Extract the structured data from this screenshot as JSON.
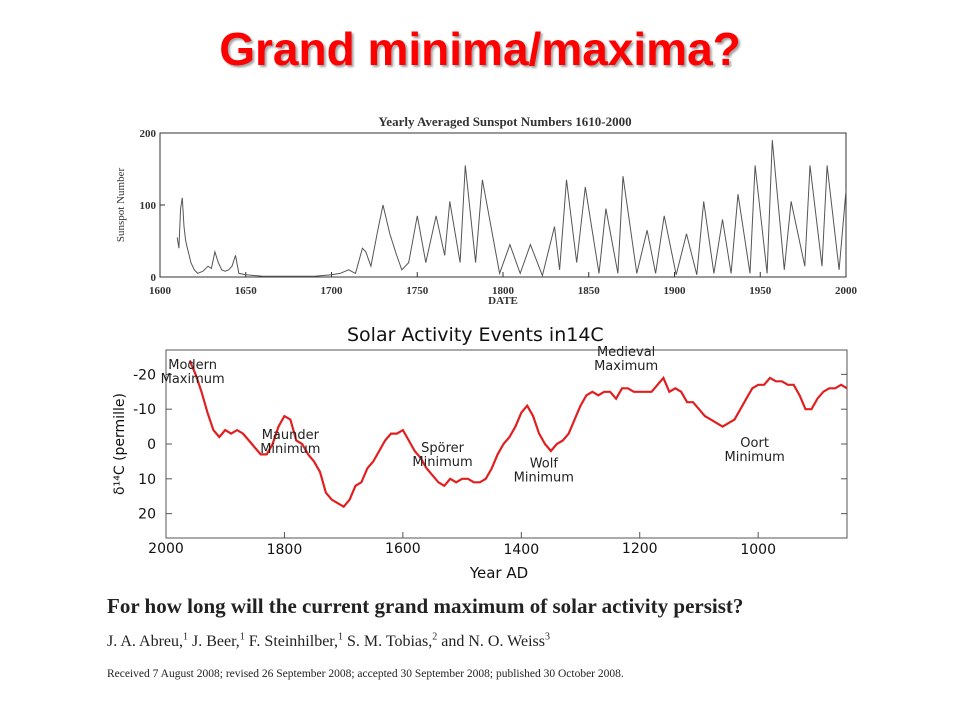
{
  "slide": {
    "title": "Grand minima/maxima?",
    "title_color": "#ff0000"
  },
  "paper": {
    "title": "For how long will the current grand maximum of solar activity persist?",
    "authors": [
      {
        "name": "J. A. Abreu,",
        "aff": "1"
      },
      {
        "name": "J. Beer,",
        "aff": "1"
      },
      {
        "name": "F. Steinhilber,",
        "aff": "1"
      },
      {
        "name": "S. M. Tobias,",
        "aff": "2"
      },
      {
        "name": "and N. O. Weiss",
        "aff": "3"
      }
    ],
    "history": "Received 7 August 2008; revised 26 September 2008; accepted 30 September 2008; published 30 October 2008."
  },
  "chart_data": [
    {
      "type": "line",
      "title": "Yearly Averaged Sunspot Numbers 1610-2000",
      "xlabel": "DATE",
      "ylabel": "Sunspot Number",
      "xlim": [
        1600,
        2000
      ],
      "ylim": [
        0,
        200
      ],
      "xticks": [
        1600,
        1650,
        1700,
        1750,
        1800,
        1850,
        1900,
        1950,
        2000
      ],
      "yticks": [
        0,
        100,
        200
      ],
      "grid": false,
      "line_color": "#555555",
      "series": [
        {
          "x": [
            1610,
            1611,
            1612,
            1613,
            1614,
            1615,
            1616,
            1617,
            1618,
            1620,
            1622,
            1625,
            1628,
            1630,
            1632,
            1634,
            1636,
            1638,
            1640,
            1642,
            1644,
            1646,
            1650,
            1660,
            1670,
            1680,
            1690,
            1700,
            1705,
            1710,
            1714,
            1718,
            1720,
            1723,
            1727,
            1730,
            1734,
            1738,
            1741,
            1745,
            1750,
            1755,
            1761,
            1766,
            1769,
            1775,
            1778,
            1784,
            1788,
            1798,
            1804,
            1810,
            1816,
            1823,
            1830,
            1833,
            1837,
            1843,
            1848,
            1856,
            1860,
            1867,
            1870,
            1878,
            1884,
            1889,
            1894,
            1901,
            1907,
            1913,
            1917,
            1923,
            1928,
            1933,
            1937,
            1944,
            1947,
            1954,
            1957,
            1964,
            1968,
            1976,
            1979,
            1986,
            1989,
            1996,
            2000
          ],
          "y": [
            55,
            40,
            95,
            110,
            70,
            50,
            40,
            30,
            20,
            10,
            5,
            8,
            15,
            12,
            35,
            20,
            10,
            8,
            10,
            15,
            30,
            5,
            3,
            1,
            1,
            1,
            1,
            3,
            5,
            10,
            5,
            40,
            35,
            15,
            65,
            100,
            60,
            30,
            10,
            20,
            85,
            20,
            85,
            30,
            105,
            20,
            155,
            20,
            135,
            5,
            45,
            5,
            45,
            2,
            70,
            10,
            135,
            20,
            125,
            5,
            95,
            5,
            140,
            5,
            65,
            5,
            85,
            3,
            60,
            3,
            105,
            5,
            80,
            5,
            115,
            5,
            155,
            5,
            190,
            10,
            105,
            15,
            155,
            15,
            155,
            10,
            120
          ]
        }
      ]
    },
    {
      "type": "line",
      "title": "Solar Activity Events in",
      "title_isotope": "14C",
      "xlabel": "Year AD",
      "ylabel": "δ¹⁴C (permille)",
      "xlim": [
        2000,
        850
      ],
      "ylim": [
        -27,
        27
      ],
      "y_inverted": true,
      "xticks": [
        2000,
        1800,
        1600,
        1400,
        1200,
        1000
      ],
      "yticks": [
        -20,
        -10,
        0,
        10,
        20
      ],
      "grid": false,
      "line_color": "#e02020",
      "series": [
        {
          "x": [
            1960,
            1950,
            1940,
            1930,
            1920,
            1910,
            1900,
            1890,
            1880,
            1870,
            1860,
            1850,
            1840,
            1830,
            1820,
            1810,
            1800,
            1790,
            1780,
            1770,
            1760,
            1750,
            1740,
            1730,
            1720,
            1710,
            1700,
            1690,
            1680,
            1670,
            1660,
            1650,
            1640,
            1630,
            1620,
            1610,
            1600,
            1590,
            1580,
            1570,
            1560,
            1550,
            1540,
            1530,
            1520,
            1510,
            1500,
            1490,
            1480,
            1470,
            1460,
            1450,
            1440,
            1430,
            1420,
            1410,
            1400,
            1390,
            1380,
            1370,
            1360,
            1350,
            1340,
            1330,
            1320,
            1310,
            1300,
            1290,
            1280,
            1270,
            1260,
            1250,
            1240,
            1230,
            1220,
            1210,
            1200,
            1190,
            1180,
            1170,
            1160,
            1150,
            1140,
            1130,
            1120,
            1110,
            1100,
            1090,
            1080,
            1070,
            1060,
            1050,
            1040,
            1030,
            1020,
            1010,
            1000,
            990,
            980,
            970,
            960,
            950,
            940,
            930,
            920,
            910,
            900,
            890,
            880,
            870,
            860,
            850
          ],
          "y": [
            -24,
            -20,
            -15,
            -9,
            -4,
            -2,
            -4,
            -3,
            -4,
            -3,
            -1,
            1,
            3,
            3,
            0,
            -5,
            -8,
            -7,
            -1,
            0,
            3,
            5,
            8,
            14,
            16,
            17,
            18,
            16,
            12,
            11,
            7,
            5,
            2,
            -1,
            -3,
            -3,
            -4,
            -1,
            2,
            4,
            7,
            9,
            11,
            12,
            10,
            11,
            10,
            10,
            11,
            11,
            10,
            7,
            3,
            0,
            -2,
            -5,
            -9,
            -11,
            -8,
            -3,
            0,
            2,
            0,
            -1,
            -3,
            -7,
            -11,
            -14,
            -15,
            -14,
            -15,
            -15,
            -13,
            -16,
            -16,
            -15,
            -15,
            -15,
            -15,
            -17,
            -19,
            -15,
            -16,
            -15,
            -12,
            -12,
            -10,
            -8,
            -7,
            -6,
            -5,
            -6,
            -7,
            -10,
            -13,
            -16,
            -17,
            -17,
            -19,
            -18,
            -18,
            -17,
            -17,
            -14,
            -10,
            -10,
            -13,
            -15,
            -16,
            -16,
            -17,
            -16
          ]
        }
      ],
      "annotations": [
        {
          "lines": [
            "Modern",
            "Maximum"
          ],
          "year": 1955,
          "value": -21.5
        },
        {
          "lines": [
            "Maunder",
            "Minimum"
          ],
          "year": 1790,
          "value": -1.5
        },
        {
          "lines": [
            "Spörer",
            "Minimum"
          ],
          "year": 1533,
          "value": 2.3
        },
        {
          "lines": [
            "Wolf",
            "Minimum"
          ],
          "year": 1362,
          "value": 6.8
        },
        {
          "lines": [
            "Medieval",
            "Maximum"
          ],
          "year": 1223,
          "value": -25.3
        },
        {
          "lines": [
            "Oort",
            "Minimum"
          ],
          "year": 1006,
          "value": 0.8
        }
      ]
    }
  ]
}
